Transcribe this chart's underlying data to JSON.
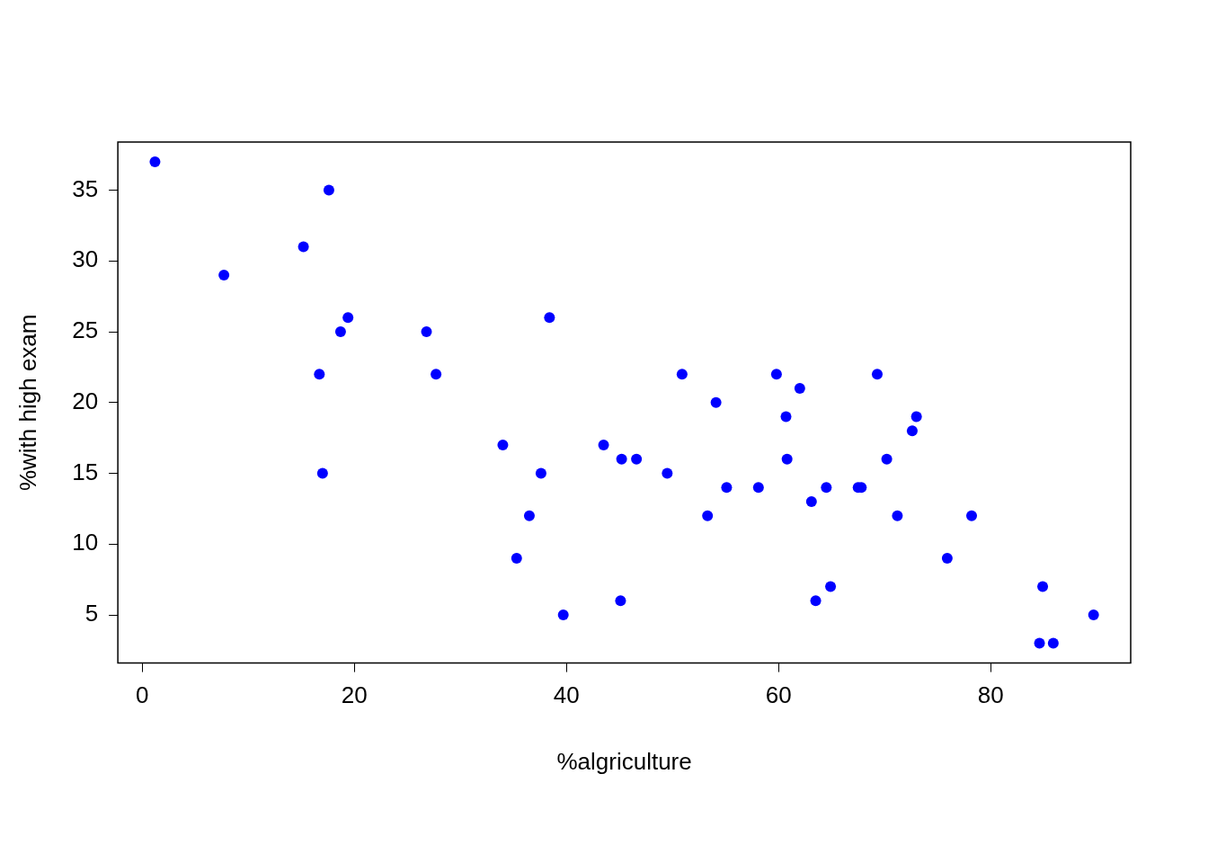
{
  "chart_data": {
    "type": "scatter",
    "xlabel": "%algriculture",
    "ylabel": "%with high exam",
    "x": [
      17.0,
      45.1,
      39.7,
      36.5,
      43.5,
      35.3,
      70.2,
      67.8,
      53.3,
      45.2,
      64.5,
      62.0,
      67.5,
      60.7,
      69.3,
      72.6,
      34.0,
      19.4,
      15.2,
      73.0,
      59.8,
      55.1,
      50.9,
      54.1,
      71.2,
      58.1,
      63.5,
      60.8,
      26.8,
      49.5,
      85.9,
      84.9,
      89.7,
      78.2,
      64.9,
      75.9,
      84.6,
      63.1,
      38.4,
      7.7,
      16.7,
      17.6,
      37.6,
      18.7,
      1.2,
      46.6,
      27.7
    ],
    "series": [
      {
        "color": "#0000ff",
        "values": [
          15,
          6,
          5,
          12,
          17,
          9,
          16,
          14,
          12,
          16,
          14,
          21,
          14,
          19,
          22,
          18,
          17,
          26,
          31,
          19,
          22,
          14,
          22,
          20,
          12,
          14,
          6,
          16,
          25,
          15,
          3,
          7,
          5,
          12,
          7,
          9,
          3,
          13,
          26,
          29,
          22,
          35,
          15,
          25,
          37,
          16,
          22
        ]
      }
    ],
    "xlim": [
      -2.3,
      93.2
    ],
    "xticks": [
      0,
      20,
      40,
      60,
      80
    ],
    "ylim": [
      1.6,
      38.4
    ],
    "yticks": [
      5,
      10,
      15,
      20,
      25,
      30,
      35
    ],
    "grid": false,
    "legend": false,
    "marker": "circle"
  }
}
